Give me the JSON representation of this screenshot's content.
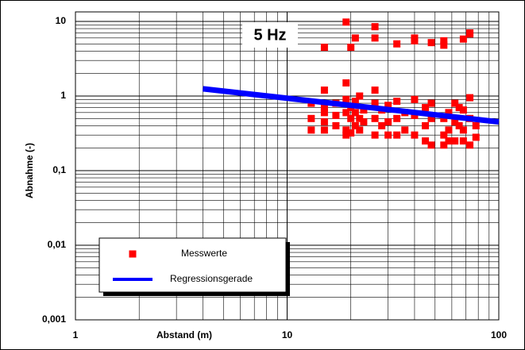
{
  "chart_data": {
    "type": "scatter",
    "title": "5 Hz",
    "x_label": "Abstand (m)",
    "y_label": "Abnahme (-)",
    "log_x": true,
    "log_y": true,
    "grid": true,
    "xlim": [
      1,
      100
    ],
    "xticks": [
      1,
      10,
      100
    ],
    "ylim": [
      0.001,
      10
    ],
    "yticks": [
      {
        "value": 0.001,
        "label": "0,001"
      },
      {
        "value": 0.01,
        "label": "0,01"
      },
      {
        "value": 0.1,
        "label": "0,1"
      },
      1,
      10
    ],
    "legend": "bottom-left",
    "series": [
      {
        "name": "Messwerte",
        "color": "#ff0000",
        "kind": "scatter",
        "x": [
          15,
          19,
          20,
          21,
          26,
          26,
          33,
          40,
          40,
          48,
          55,
          55,
          68,
          73,
          73,
          13,
          13,
          13,
          15,
          15,
          15,
          15,
          15,
          17,
          17,
          17,
          19,
          19,
          19,
          19,
          19,
          20,
          20,
          20,
          21,
          21,
          21,
          22,
          22,
          22,
          23,
          23,
          26,
          26,
          26,
          26,
          28,
          28,
          30,
          30,
          30,
          33,
          33,
          33,
          36,
          36,
          40,
          40,
          40,
          45,
          45,
          45,
          48,
          48,
          48,
          55,
          55,
          55,
          58,
          58,
          58,
          62,
          62,
          62,
          65,
          65,
          68,
          68,
          68,
          73,
          73,
          73,
          78,
          78
        ],
        "values": [
          4.5,
          9.8,
          4.5,
          6,
          8.5,
          6,
          5,
          6,
          5.5,
          5.2,
          5.5,
          4.8,
          5.8,
          6.8,
          7,
          0.5,
          0.8,
          0.35,
          1.2,
          0.7,
          0.45,
          0.35,
          0.6,
          0.55,
          0.4,
          0.8,
          1.5,
          0.9,
          0.6,
          0.35,
          0.3,
          0.7,
          0.5,
          0.32,
          0.85,
          0.6,
          0.4,
          1.0,
          0.5,
          0.35,
          0.65,
          0.45,
          1.2,
          0.8,
          0.5,
          0.3,
          0.65,
          0.4,
          0.75,
          0.45,
          0.3,
          0.85,
          0.5,
          0.3,
          0.6,
          0.35,
          0.9,
          0.55,
          0.3,
          0.7,
          0.4,
          0.25,
          0.8,
          0.5,
          0.22,
          0.5,
          0.3,
          0.22,
          0.6,
          0.35,
          0.25,
          0.8,
          0.45,
          0.25,
          0.7,
          0.4,
          0.65,
          0.35,
          0.25,
          0.95,
          0.5,
          0.22,
          0.4,
          0.28
        ]
      },
      {
        "name": "Regressionsgerade",
        "color": "#0000ff",
        "kind": "line",
        "x": [
          4,
          100
        ],
        "values": [
          1.25,
          0.45
        ]
      }
    ]
  }
}
